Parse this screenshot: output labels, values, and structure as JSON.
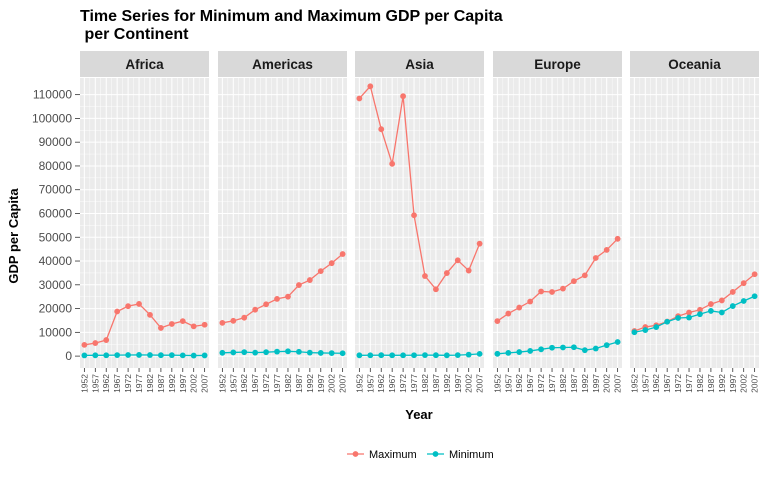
{
  "chart_data": {
    "type": "line",
    "title_line1": "Time Series for Minimum and Maximum GDP per Capita",
    "title_line2": " per Continent",
    "xlabel": "Year",
    "ylabel": "GDP per Capita",
    "ylim": [
      -5000,
      117000
    ],
    "yticks": [
      0,
      10000,
      20000,
      30000,
      40000,
      50000,
      60000,
      70000,
      80000,
      90000,
      100000,
      110000
    ],
    "x": [
      1952,
      1957,
      1962,
      1967,
      1972,
      1977,
      1982,
      1987,
      1992,
      1997,
      2002,
      2007
    ],
    "xlim": [
      1950,
      2009
    ],
    "panels": [
      {
        "name": "Africa",
        "series": [
          {
            "name": "Maximum",
            "values": [
              4725,
              5487,
              6757,
              18773,
              21011,
              21951,
              17364,
              11864,
              13522,
              14723,
              12522,
              13206
            ]
          },
          {
            "name": "Minimum",
            "values": [
              299,
              336,
              355,
              413,
              464,
              502,
              462,
              389,
              411,
              312,
              241,
              278
            ]
          }
        ]
      },
      {
        "name": "Americas",
        "series": [
          {
            "name": "Maximum",
            "values": [
              13990,
              14847,
              16173,
              19530,
              21806,
              24073,
              25010,
              29884,
              32004,
              35767,
              39097,
              42952
            ]
          },
          {
            "name": "Minimum",
            "values": [
              1398,
              1544,
              1662,
              1453,
              1654,
              1874,
              2011,
              1823,
              1456,
              1342,
              1270,
              1202
            ]
          }
        ]
      },
      {
        "name": "Asia",
        "series": [
          {
            "name": "Maximum",
            "values": [
              108382,
              113523,
              95458,
              80895,
              109348,
              59265,
              33693,
              28118,
              34933,
              40301,
              35996,
              47307
            ]
          },
          {
            "name": "Minimum",
            "values": [
              331,
              350,
              388,
              349,
              357,
              371,
              424,
              385,
              347,
              415,
              611,
              944
            ]
          }
        ]
      },
      {
        "name": "Europe",
        "series": [
          {
            "name": "Maximum",
            "values": [
              14734,
              17909,
              20431,
              22966,
              27195,
              26982,
              28397,
              31541,
              33966,
              41283,
              44684,
              49357
            ]
          },
          {
            "name": "Minimum",
            "values": [
              973,
              1354,
              1709,
              2172,
              2860,
              3528,
              3631,
              3739,
              2497,
              3193,
              4604,
              5937
            ]
          }
        ]
      },
      {
        "name": "Oceania",
        "series": [
          {
            "name": "Maximum",
            "values": [
              10557,
              12247,
              12955,
              14526,
              16789,
              18334,
              19477,
              21889,
              23425,
              26998,
              30688,
              34435
            ]
          },
          {
            "name": "Minimum",
            "values": [
              10040,
              10950,
              12217,
              14464,
              16046,
              16234,
              17641,
              19011,
              18363,
              21051,
              23190,
              25185
            ]
          }
        ]
      }
    ],
    "legend": {
      "placement": "bottom",
      "entries": [
        {
          "name": "Maximum",
          "color": "#F8766D"
        },
        {
          "name": "Minimum",
          "color": "#00BFC4"
        }
      ]
    },
    "colors": {
      "panel_bg": "#EBEBEB",
      "grid": "#FFFFFF",
      "strip_bg": "#D9D9D9"
    },
    "grid": true
  }
}
